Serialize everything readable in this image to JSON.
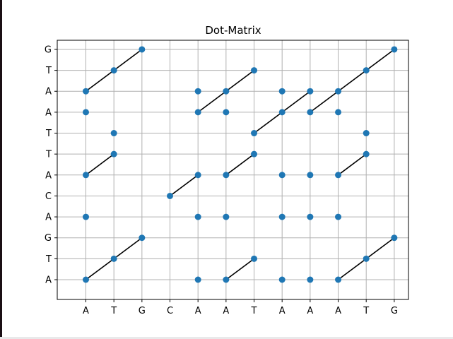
{
  "chart_data": {
    "type": "scatter",
    "title": "Dot-Matrix",
    "xlabel": "",
    "ylabel": "",
    "x_sequence": [
      "A",
      "T",
      "G",
      "C",
      "A",
      "A",
      "T",
      "A",
      "A",
      "A",
      "T",
      "G"
    ],
    "y_sequence": [
      "A",
      "T",
      "G",
      "A",
      "C",
      "A",
      "T",
      "T",
      "A",
      "A",
      "T",
      "G"
    ],
    "grid": true,
    "legend": "none",
    "point_color": "#1f77b4",
    "line_color": "#000000",
    "points": [
      [
        0,
        0
      ],
      [
        0,
        3
      ],
      [
        0,
        5
      ],
      [
        0,
        8
      ],
      [
        0,
        9
      ],
      [
        1,
        1
      ],
      [
        1,
        6
      ],
      [
        1,
        7
      ],
      [
        1,
        10
      ],
      [
        2,
        2
      ],
      [
        2,
        11
      ],
      [
        3,
        4
      ],
      [
        4,
        0
      ],
      [
        4,
        3
      ],
      [
        4,
        5
      ],
      [
        4,
        8
      ],
      [
        4,
        9
      ],
      [
        5,
        0
      ],
      [
        5,
        3
      ],
      [
        5,
        5
      ],
      [
        5,
        8
      ],
      [
        5,
        9
      ],
      [
        6,
        1
      ],
      [
        6,
        6
      ],
      [
        6,
        7
      ],
      [
        6,
        10
      ],
      [
        7,
        0
      ],
      [
        7,
        3
      ],
      [
        7,
        5
      ],
      [
        7,
        8
      ],
      [
        7,
        9
      ],
      [
        8,
        0
      ],
      [
        8,
        3
      ],
      [
        8,
        5
      ],
      [
        8,
        8
      ],
      [
        8,
        9
      ],
      [
        9,
        0
      ],
      [
        9,
        3
      ],
      [
        9,
        5
      ],
      [
        9,
        8
      ],
      [
        9,
        9
      ],
      [
        10,
        1
      ],
      [
        10,
        6
      ],
      [
        10,
        7
      ],
      [
        10,
        10
      ],
      [
        11,
        2
      ],
      [
        11,
        11
      ]
    ],
    "segments": [
      [
        [
          0,
          0
        ],
        [
          2,
          2
        ]
      ],
      [
        [
          0,
          5
        ],
        [
          1,
          6
        ]
      ],
      [
        [
          0,
          9
        ],
        [
          2,
          11
        ]
      ],
      [
        [
          3,
          4
        ],
        [
          4,
          5
        ]
      ],
      [
        [
          5,
          0
        ],
        [
          6,
          1
        ]
      ],
      [
        [
          5,
          5
        ],
        [
          6,
          6
        ]
      ],
      [
        [
          4,
          8
        ],
        [
          6,
          10
        ]
      ],
      [
        [
          6,
          7
        ],
        [
          8,
          9
        ]
      ],
      [
        [
          8,
          8
        ],
        [
          11,
          11
        ]
      ],
      [
        [
          9,
          0
        ],
        [
          11,
          2
        ]
      ],
      [
        [
          9,
          5
        ],
        [
          10,
          6
        ]
      ]
    ]
  }
}
